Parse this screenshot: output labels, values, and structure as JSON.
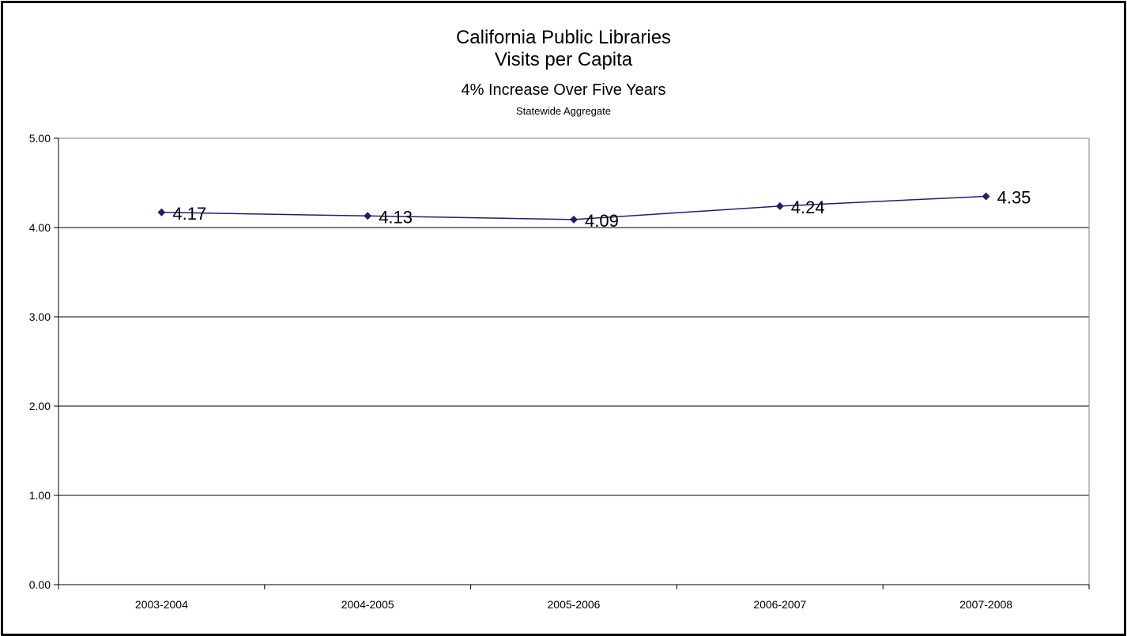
{
  "chart_data": {
    "type": "line",
    "title": "California Public Libraries",
    "title_line2": "Visits per Capita",
    "subtitle": "4% Increase Over Five Years",
    "subtitle2": "Statewide Aggregate",
    "xlabel": "",
    "ylabel": "",
    "categories": [
      "2003-2004",
      "2004-2005",
      "2005-2006",
      "2006-2007",
      "2007-2008"
    ],
    "series": [
      {
        "values": [
          4.17,
          4.13,
          4.09,
          4.24,
          4.35
        ],
        "color": "#1F1F6B"
      }
    ],
    "data_labels": [
      "4.17",
      "4.13",
      "4.09",
      "4.24",
      "4.35"
    ],
    "ylim": [
      0,
      5
    ],
    "y_ticks": [
      "0.00",
      "1.00",
      "2.00",
      "3.00",
      "4.00",
      "5.00"
    ],
    "grid": true,
    "legend": "none"
  }
}
